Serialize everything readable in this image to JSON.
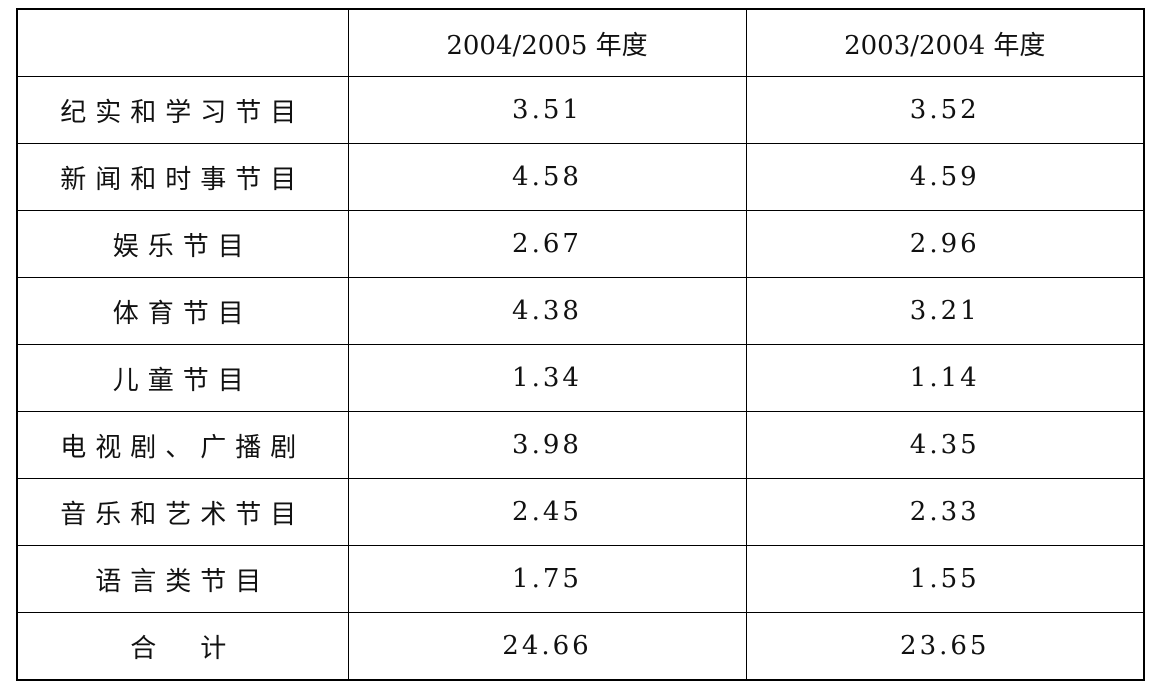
{
  "table": {
    "header": [
      "2004/2005 年度",
      "2003/2004 年度"
    ],
    "rows": [
      [
        "纪实和学习节目",
        3.51,
        3.52
      ],
      [
        "新闻和时事节目",
        4.58,
        4.59
      ],
      [
        "娱乐节目",
        2.67,
        2.96
      ],
      [
        "体育节目",
        4.38,
        3.21
      ],
      [
        "儿童节目",
        1.34,
        1.14
      ],
      [
        "电视剧、广播剧",
        3.98,
        4.35
      ],
      [
        "音乐和艺术节目",
        2.45,
        2.33
      ],
      [
        "语言类节目",
        1.75,
        1.55
      ],
      [
        "合　计",
        24.66,
        23.65
      ]
    ]
  }
}
